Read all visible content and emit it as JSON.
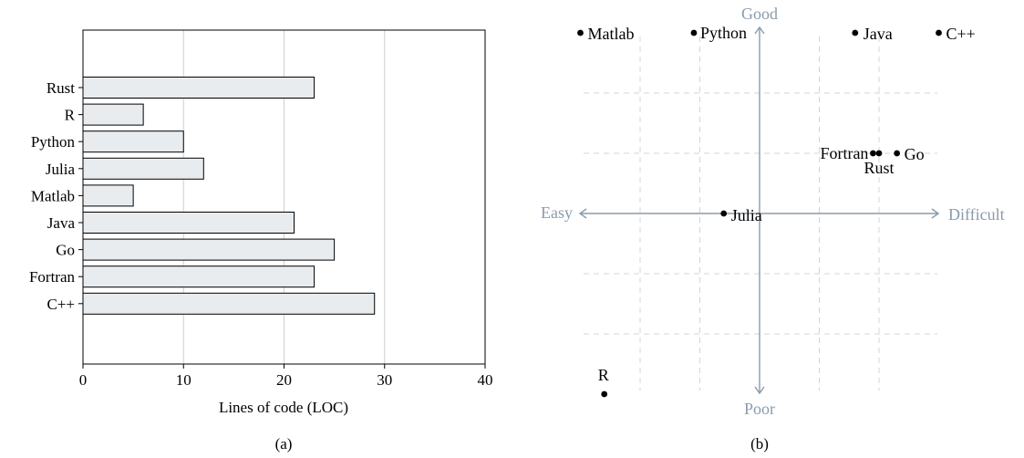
{
  "chart_data": [
    {
      "type": "bar",
      "orientation": "horizontal",
      "categories": [
        "Rust",
        "R",
        "Python",
        "Julia",
        "Matlab",
        "Java",
        "Go",
        "Fortran",
        "C++"
      ],
      "values": [
        23,
        6,
        10,
        12,
        5,
        21,
        25,
        23,
        29
      ],
      "xlabel": "Lines of code (LOC)",
      "xlim": [
        0,
        40
      ],
      "xticks": [
        0,
        10,
        20,
        30,
        40
      ],
      "grid": "vertical",
      "bar_color": "#e8ecef",
      "caption": "(a)"
    },
    {
      "type": "scatter",
      "axis_labels": {
        "left": "Easy",
        "right": "Difficult",
        "top": "Good",
        "bottom": "Poor"
      },
      "xlim": [
        -3,
        3
      ],
      "ylim": [
        -3,
        3
      ],
      "points": [
        {
          "label": "Matlab",
          "x": -3.0,
          "y": 3.0
        },
        {
          "label": "Python",
          "x": -1.1,
          "y": 3.0
        },
        {
          "label": "Java",
          "x": 1.6,
          "y": 3.0
        },
        {
          "label": "C++",
          "x": 3.0,
          "y": 3.0
        },
        {
          "label": "Fortran",
          "x": 1.9,
          "y": 1.0
        },
        {
          "label": "Rust",
          "x": 2.0,
          "y": 1.0
        },
        {
          "label": "Go",
          "x": 2.3,
          "y": 1.0
        },
        {
          "label": "Julia",
          "x": -0.6,
          "y": 0.0
        },
        {
          "label": "R",
          "x": -2.6,
          "y": -3.0
        }
      ],
      "grid": "dashed",
      "axis_color": "#8a9bab",
      "caption": "(b)"
    }
  ]
}
